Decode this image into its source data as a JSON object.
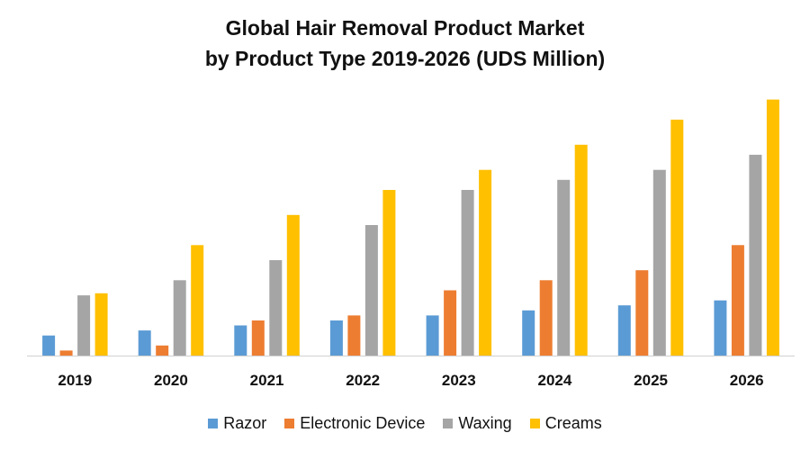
{
  "chart_data": {
    "type": "bar",
    "title_line1": "Global Hair Removal Product Market",
    "title_line2": "by Product Type 2019-2026 (UDS Million)",
    "categories": [
      "2019",
      "2020",
      "2021",
      "2022",
      "2023",
      "2024",
      "2025",
      "2026"
    ],
    "series": [
      {
        "name": "Razor",
        "color": "#5B9BD5",
        "values": [
          20,
          25,
          30,
          35,
          40,
          45,
          50,
          55
        ]
      },
      {
        "name": "Electronic Device",
        "color": "#ED7D31",
        "values": [
          5,
          10,
          35,
          40,
          65,
          75,
          85,
          110
        ]
      },
      {
        "name": "Waxing",
        "color": "#A5A5A5",
        "values": [
          60,
          75,
          95,
          130,
          165,
          175,
          185,
          200
        ]
      },
      {
        "name": "Creams",
        "color": "#FFC000",
        "values": [
          62,
          110,
          140,
          165,
          185,
          210,
          235,
          255
        ]
      }
    ],
    "ylim": [
      0,
      260
    ],
    "grid": false,
    "legend_position": "bottom"
  }
}
